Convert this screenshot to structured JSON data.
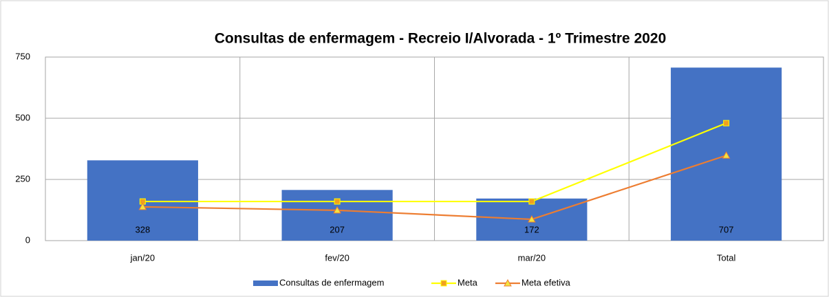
{
  "chart_data": {
    "type": "bar",
    "title": "Consultas  de enfermagem - Recreio I/Alvorada  - 1º Trimestre  2020",
    "categories": [
      "jan/20",
      "fev/20",
      "mar/20",
      "Total"
    ],
    "series": [
      {
        "name": "Consultas de enfermagem",
        "type": "bar",
        "color": "#4472c4",
        "values": [
          328,
          207,
          172,
          707
        ]
      },
      {
        "name": "Meta",
        "type": "line",
        "color": "#ffff00",
        "marker": "square",
        "marker_color": "#f0a020",
        "values": [
          160,
          160,
          160,
          480
        ]
      },
      {
        "name": "Meta efetiva",
        "type": "line",
        "color": "#ed7d31",
        "marker": "triangle",
        "marker_color": "#f2e440",
        "values": [
          138,
          124,
          87,
          348
        ]
      }
    ],
    "ylim": [
      0,
      750
    ],
    "yticks": [
      0,
      250,
      500,
      750
    ],
    "grid": true,
    "legend": "bottom"
  }
}
